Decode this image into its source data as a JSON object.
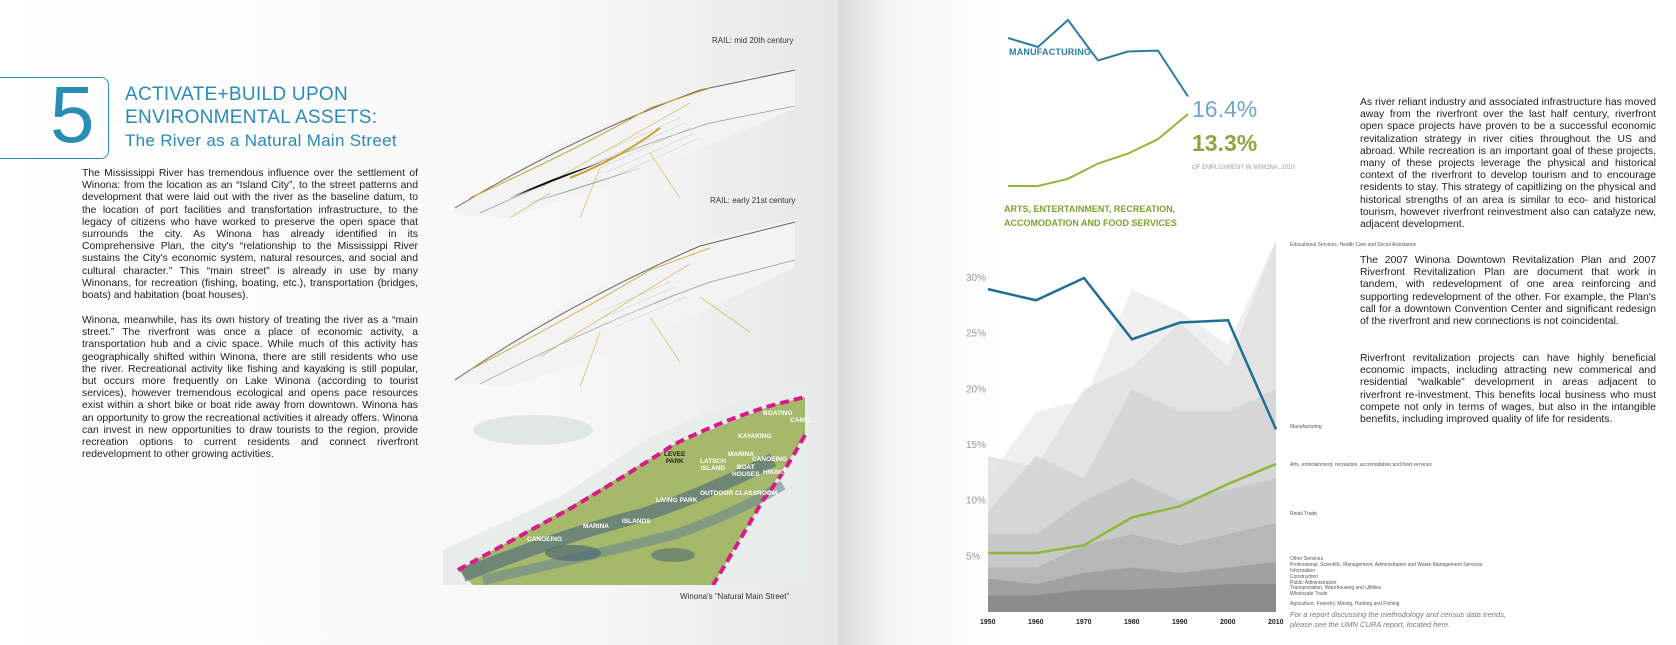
{
  "left_page": {
    "chapter_number": "5",
    "title_line1": "ACTIVATE+BUILD UPON",
    "title_line2": "ENVIRONMENTAL ASSETS:",
    "subtitle": "The River as a Natural Main Street",
    "paragraph1": "The Mississippi River has tremendous influence over the settlement of Winona: from the location as an “Island City”,  to the street patterns and development that were laid out with the river as the baseline datum, to the location of port facilities and transfortation infrastructure, to the legacy of citizens who have worked to preserve the open space that surrounds the city. As Winona has already identified in its Comprehensive Plan, the city's “relationship to the  Mississippi River sustains the City's economic system, natural resources, and social and cultural character.” This “main street” is already in use by many Winonans, for recreation (fishing, boating, etc.), transportation (bridges, boats) and habitation (boat houses).",
    "paragraph2": "Winona, meanwhile, has its own history of treating the river as a “main street.” The riverfront was once a place of economic activity, a transportation hub and a civic space. While much of this activity has geographically shifted within Winona, there are still residents who use the river. Recreational activity like fishing and kayaking is still popular, but occurs more frequently on Lake Winona (according to tourist services), however tremendous ecological and opens pace resources exist within a short bike or boat ride away from downtown.  Winona has an opportunity to grow the recreational activities it already offers. Winona can invest in new opportunities to draw tourists to the region, provide recreation options to current residents and connect riverfront redevelopment to other growing activities.",
    "rail_label_1": "RAIL: mid 20th century",
    "rail_label_2": "RAIL: early 21st century",
    "map_caption": "Winona's “Natural Main Street”",
    "map_labels": {
      "levee_park": "LEVEE\nPARK",
      "latsch_island": "LATSCH\nISLAND",
      "boating": "BOATING",
      "kayaking": "KAYAKING",
      "marina1": "MARINA",
      "boat_houses": "BOAT\nHOUSES",
      "canoeing1": "CANOEING",
      "hiking": "HIKING",
      "outdoor_classroom": "OUTDOOR CLASSROOM",
      "living_park": "LIVING PARK",
      "islands": "ISLANDS",
      "marina2": "MARINA",
      "canoeing2": "CANOEING",
      "camping": "CAMPI..."
    }
  },
  "right_page": {
    "inset": {
      "mfg_label": "MANUFACTURING",
      "mfg_pct": "16.4%",
      "arts_pct": "13.3%",
      "pct_note": "OF EMPLOYMENT IN WINONA, 2010",
      "arts_label_line1": "ARTS, ENTERTAINMENT, RECREATION,",
      "arts_label_line2": "ACCOMODATION AND FOOD SERVICES"
    },
    "paragraph1": "As river reliant industry and associated infrastructure has moved away from the riverfront over the last half century, riverfront open space projects have proven to be a successful economic revitalization strategy in river cities throughout the US and abroad.  While recreation is an important goal of these projects, many of these projects leverage the physical and historical context of the riverfront to develop tourism and to encourage residents to stay.  This strategy of capitlizing on the physical and historical strengths of an area is similar to eco- and historical tourism, however riverfront reinvestment also can catalyze new, adjacent development.",
    "paragraph2": "The 2007 Winona Downtown Revitalization Plan and 2007 Riverfront Revitalization Plan are document that work in tandem, with redevelopment of one area reinforcing and supporting redevelopment of the other. For example, the Plan's call for a downtown Convention Center and significant redesign of the riverfront and new connections is not coincidental.",
    "paragraph3": "Riverfront revitalization projects can have highly beneficial economic impacts, including attracting new commerical and residential “walkable” development in areas adjacent to riverfront re-investment.  This benefits local business who must compete not only in terms of wages, but also in the intangible benefits, including improved quality of life for residents.",
    "chart_note_line1": "For a report discussing the methodology and census data trends,",
    "chart_note_line2": "please see the UMN CURA report, located here."
  },
  "chart_data": {
    "type": "line",
    "x": [
      1950,
      1960,
      1970,
      1980,
      1990,
      2000,
      2010
    ],
    "ylim": [
      0,
      30
    ],
    "yticks": [
      "5%",
      "10%",
      "15%",
      "20%",
      "25%",
      "30%"
    ],
    "series": [
      {
        "name": "Manufacturing",
        "values": [
          29,
          28,
          30,
          24.5,
          26,
          26.2,
          16.4
        ],
        "color": "#1f6f93"
      },
      {
        "name": "Arts, entertainment, recreation, accomodation and food services",
        "values": [
          5.3,
          5.3,
          6,
          8.5,
          9.5,
          11.5,
          13.3
        ],
        "color": "#8db83a"
      }
    ],
    "sector_labels": [
      "Educational Services, Health Care and Social Assistance",
      "Manufacturing",
      "Arts, entertainment, recreation, accomodation and food services",
      "Retail Trade",
      "Other Services",
      "Professional, Scientific, Management, Administrative and Waste Management Services",
      "Information",
      "Construction",
      "Public Administration",
      "Transportation, Warehousing and Utilities",
      "Wholesale Trade",
      "Agriculture, Forestry, Mining, Hunting and Fishing"
    ],
    "inset": {
      "manufacturing": [
        13,
        12,
        15,
        10.5,
        11.5,
        11.6,
        6.5
      ],
      "arts": [
        1,
        1,
        1.8,
        3.5,
        4.6,
        6.2,
        9
      ]
    }
  }
}
